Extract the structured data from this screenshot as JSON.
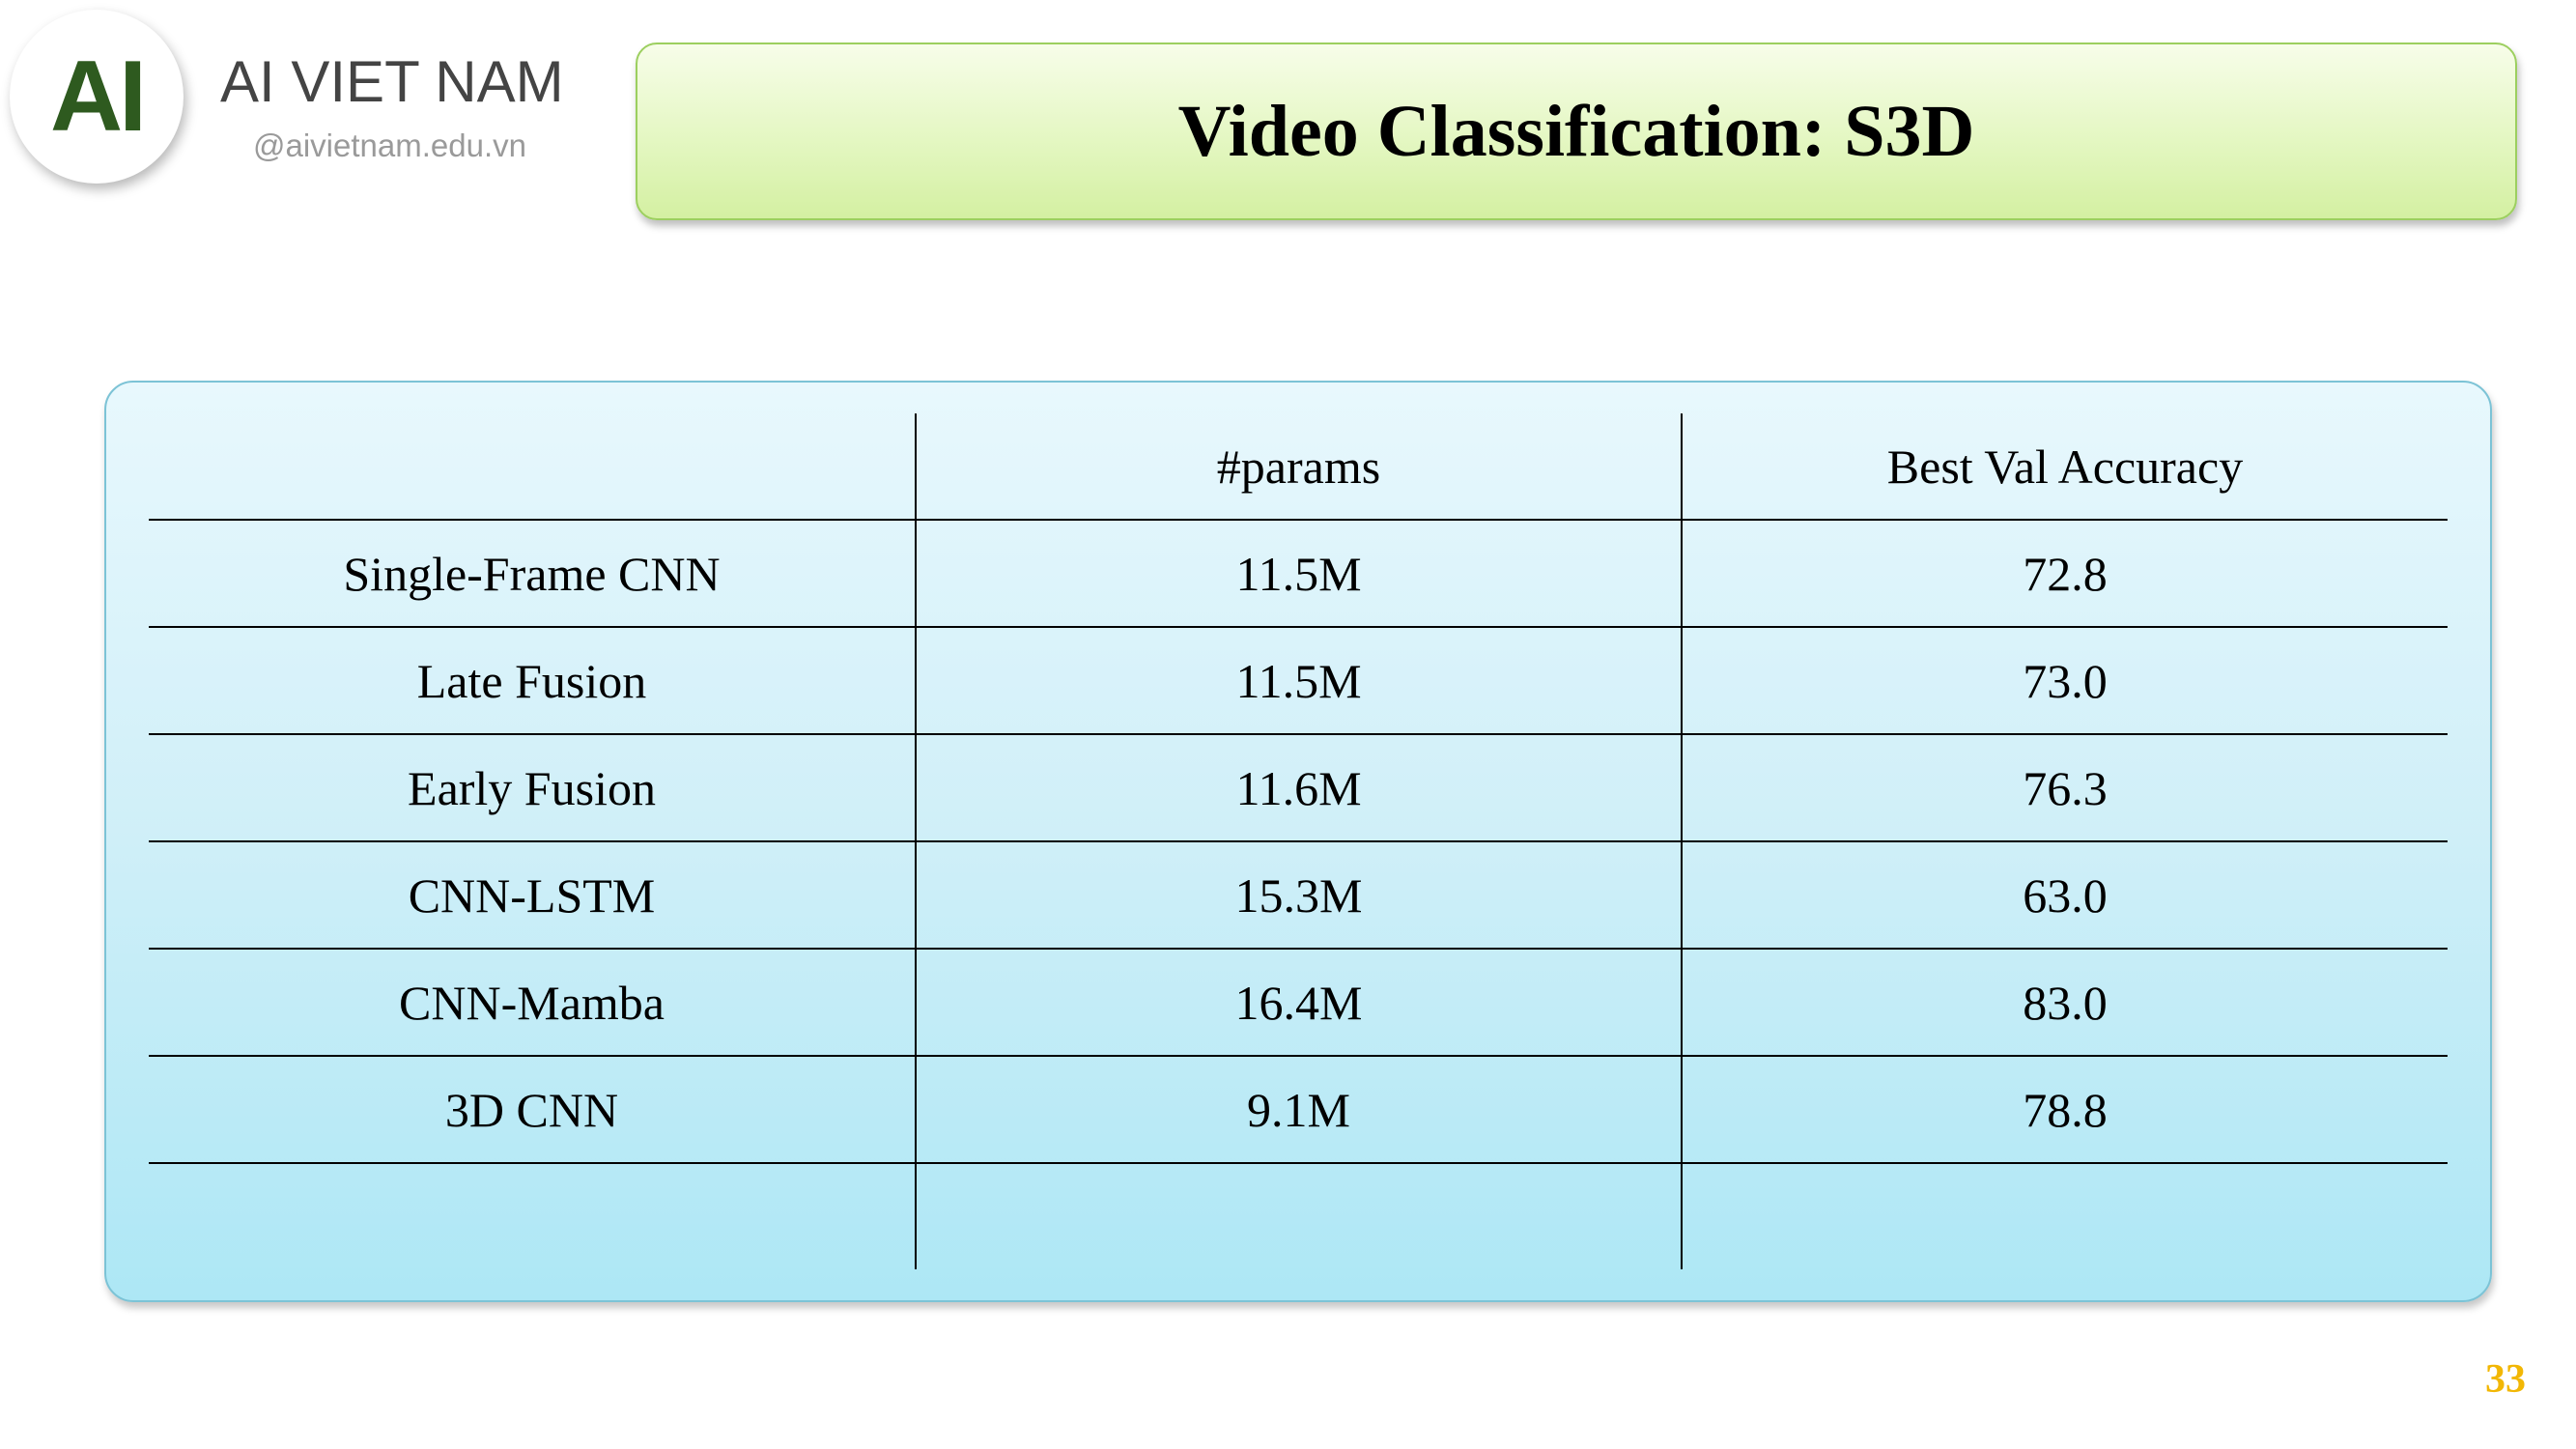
{
  "brand": {
    "logo_text": "AI",
    "name": "AI VIET NAM",
    "website": "@aivietnam.edu.vn"
  },
  "slide": {
    "title": "Video Classification: S3D",
    "page_number": "33"
  },
  "table": {
    "headers": [
      "",
      "#params",
      "Best Val Accuracy"
    ],
    "rows": [
      {
        "model": "Single-Frame CNN",
        "params": "11.5M",
        "accuracy": "72.8"
      },
      {
        "model": "Late Fusion",
        "params": "11.5M",
        "accuracy": "73.0"
      },
      {
        "model": "Early Fusion",
        "params": "11.6M",
        "accuracy": "76.3"
      },
      {
        "model": "CNN-LSTM",
        "params": "15.3M",
        "accuracy": "63.0"
      },
      {
        "model": "CNN-Mamba",
        "params": "16.4M",
        "accuracy": "83.0"
      },
      {
        "model": "3D CNN",
        "params": "9.1M",
        "accuracy": "78.8"
      },
      {
        "model": "",
        "params": "",
        "accuracy": ""
      }
    ]
  },
  "colors": {
    "logo_green": "#2e5a1f",
    "title_banner": "#e4f7c2",
    "table_panel": "#cfeff8",
    "page_number": "#f2b705"
  }
}
